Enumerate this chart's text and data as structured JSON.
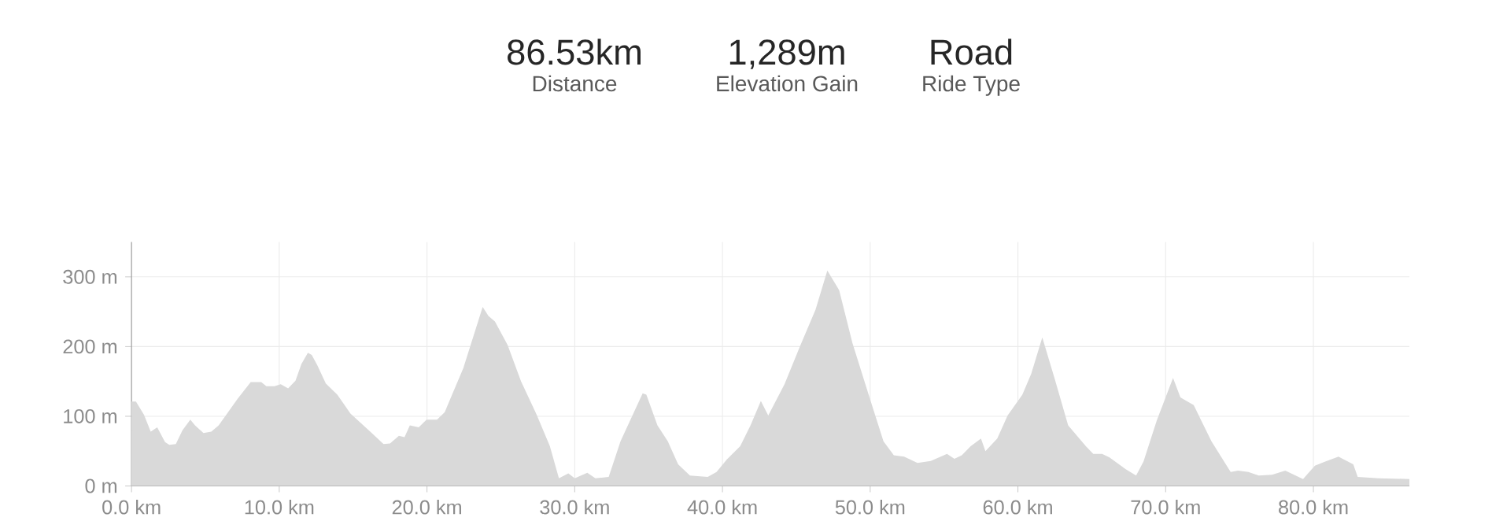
{
  "chart_data": {
    "type": "area",
    "annotations": [
      "86.53km",
      "Distance",
      "1,289m",
      "Elevation Gain",
      "Road",
      "Ride Type"
    ],
    "x": [
      0,
      0.3,
      0.85,
      1.3,
      1.74,
      2.27,
      2.56,
      3.0,
      3.45,
      3.98,
      4.3,
      4.87,
      5.4,
      5.9,
      6.47,
      7.18,
      8.07,
      8.78,
      9.13,
      9.67,
      10.1,
      10.6,
      11.1,
      11.5,
      11.94,
      12.2,
      12.58,
      13.15,
      13.93,
      14.82,
      16.06,
      17.06,
      17.5,
      18.1,
      18.48,
      18.84,
      19.44,
      19.97,
      20.68,
      21.2,
      22.46,
      23.77,
      24.16,
      24.6,
      25.46,
      26.37,
      27.43,
      28.32,
      28.93,
      29.57,
      30.0,
      30.85,
      31.4,
      32.3,
      33.1,
      34.6,
      34.85,
      35.6,
      36.3,
      37.0,
      37.8,
      39.0,
      39.6,
      40.3,
      41.2,
      41.9,
      42.6,
      43.1,
      44.2,
      45.2,
      46.3,
      47.1,
      47.9,
      48.8,
      50.0,
      50.9,
      51.6,
      52.3,
      53.2,
      54.1,
      55.2,
      55.7,
      56.2,
      56.8,
      57.5,
      57.8,
      58.6,
      59.3,
      60.3,
      60.9,
      61.65,
      62.5,
      63.4,
      64.6,
      65.1,
      65.7,
      66.2,
      67.3,
      68.0,
      68.5,
      69.4,
      70.5,
      71.0,
      71.9,
      73.1,
      74.4,
      74.9,
      75.6,
      76.3,
      77.2,
      78.1,
      79.3,
      80.1,
      80.8,
      81.7,
      82.7,
      83.0,
      84.4,
      86.5
    ],
    "values": [
      121,
      121,
      102,
      78,
      84,
      63,
      59,
      60,
      80,
      95,
      87,
      76,
      78,
      87,
      104,
      125,
      149,
      149,
      143,
      143,
      146,
      140,
      151,
      175,
      191,
      188,
      173,
      147,
      131,
      104,
      80,
      60,
      61,
      72,
      70,
      87,
      84,
      95,
      95,
      106,
      169,
      257,
      244,
      236,
      202,
      150,
      102,
      57,
      11,
      18,
      11,
      19,
      11,
      13,
      64,
      133,
      131,
      87,
      64,
      31,
      15,
      13,
      20,
      38,
      57,
      87,
      122,
      101,
      146,
      198,
      253,
      309,
      281,
      205,
      124,
      64,
      44,
      42,
      33,
      36,
      46,
      39,
      44,
      57,
      68,
      50,
      68,
      101,
      131,
      161,
      213,
      153,
      87,
      57,
      46,
      46,
      41,
      24,
      15,
      35,
      94,
      155,
      127,
      116,
      64,
      20,
      22,
      20,
      15,
      16,
      22,
      10,
      29,
      35,
      42,
      31,
      13,
      11,
      10
    ],
    "color": "#d9d9d9",
    "xlim": [
      0,
      86.5
    ],
    "ylim": [
      0,
      350
    ],
    "xticks": [
      {
        "value": 0,
        "label": "0.0 km"
      },
      {
        "value": 10,
        "label": "10.0 km"
      },
      {
        "value": 20,
        "label": "20.0 km"
      },
      {
        "value": 30,
        "label": "30.0 km"
      },
      {
        "value": 40,
        "label": "40.0 km"
      },
      {
        "value": 50,
        "label": "50.0 km"
      },
      {
        "value": 60,
        "label": "60.0 km"
      },
      {
        "value": 70,
        "label": "70.0 km"
      },
      {
        "value": 80,
        "label": "80.0 km"
      }
    ],
    "yticks": [
      {
        "value": 0,
        "label": "0 m"
      },
      {
        "value": 100,
        "label": "100 m"
      },
      {
        "value": 200,
        "label": "200 m"
      },
      {
        "value": 300,
        "label": "300 m"
      }
    ],
    "grid": true
  }
}
